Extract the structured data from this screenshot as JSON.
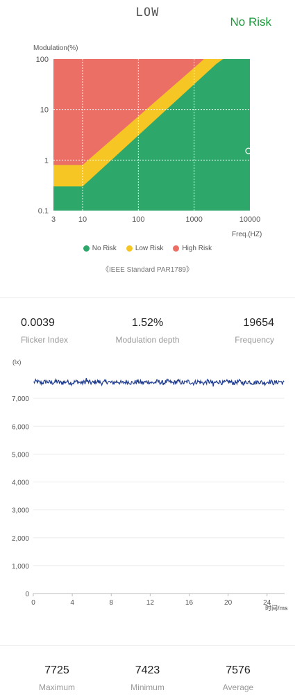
{
  "header": {
    "mode": "LOW",
    "status": "No Risk",
    "status_color": "#1d9a3b"
  },
  "risk_chart": {
    "chart_data": {
      "type": "area",
      "ylabel": "Modulation(%)",
      "xlabel": "Freq.(HZ)",
      "xscale": "log",
      "yscale": "log",
      "xlim": [
        3,
        10000
      ],
      "ylim": [
        0.1,
        100
      ],
      "x_ticks": [
        "3",
        "10",
        "100",
        "1000",
        "10000"
      ],
      "y_ticks": [
        "0.1",
        "1",
        "10",
        "100"
      ],
      "regions": [
        {
          "name": "No Risk",
          "color": "#2ea86a"
        },
        {
          "name": "Low Risk",
          "color": "#f6c624"
        },
        {
          "name": "High Risk",
          "color": "#ec6f66"
        }
      ],
      "boundaries": {
        "no_to_low": [
          [
            3,
            0.3
          ],
          [
            10,
            0.3
          ],
          [
            2500,
            80
          ],
          [
            3300,
            100
          ]
        ],
        "low_to_high": [
          [
            3,
            0.8
          ],
          [
            10,
            0.8
          ],
          [
            1200,
            80
          ],
          [
            1500,
            100
          ]
        ]
      },
      "measurement": {
        "frequency": 10000,
        "modulation": 1.52
      }
    },
    "legend": [
      "No Risk",
      "Low Risk",
      "High Risk"
    ],
    "standard": "《IEEE Standard PAR1789》"
  },
  "stats_top": [
    {
      "value": "0.0039",
      "label": "Flicker Index"
    },
    {
      "value": "1.52%",
      "label": "Modulation depth"
    },
    {
      "value": "19654",
      "label": "Frequency"
    }
  ],
  "waveform": {
    "chart_data": {
      "type": "line",
      "ylabel": "(lx)",
      "xlabel": "时间/ms",
      "xlim": [
        0,
        25.8
      ],
      "ylim": [
        0,
        8000
      ],
      "x_ticks": [
        0,
        4,
        8,
        12,
        16,
        20,
        24
      ],
      "y_ticks": [
        "0",
        "1,000",
        "2,000",
        "3,000",
        "4,000",
        "5,000",
        "6,000",
        "7,000"
      ],
      "y_tick_values": [
        0,
        1000,
        2000,
        3000,
        4000,
        5000,
        6000,
        7000
      ],
      "series": [
        {
          "mean": 7576,
          "max": 7725,
          "min": 7423,
          "color": "#1f3c8f"
        }
      ]
    }
  },
  "stats_bottom": [
    {
      "value": "7725",
      "label": "Maximum"
    },
    {
      "value": "7423",
      "label": "Minimum"
    },
    {
      "value": "7576",
      "label": "Average"
    }
  ]
}
